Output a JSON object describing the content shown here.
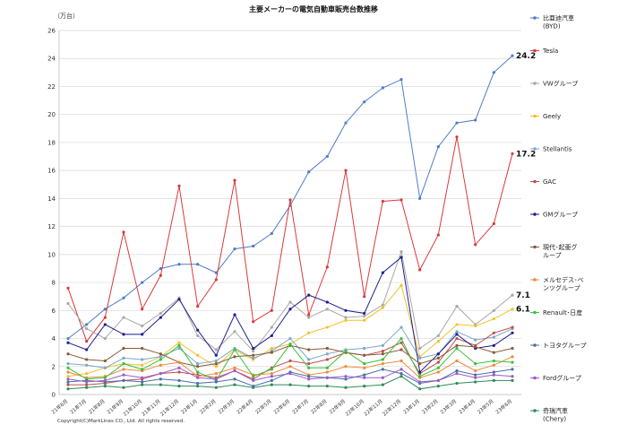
{
  "chart_data": {
    "type": "line",
    "title": "主要メーカーの電気自動車販売台数推移",
    "unit_label": "（万台）",
    "ylim": [
      0,
      26
    ],
    "yticks": [
      0,
      2,
      4,
      6,
      8,
      10,
      12,
      14,
      16,
      18,
      20,
      22,
      24,
      26
    ],
    "grid": true,
    "legend_position": "right",
    "x": [
      "21年6月",
      "21年7月",
      "21年8月",
      "21年9月",
      "21年10月",
      "21年11月",
      "21年12月",
      "22年1月",
      "22年2月",
      "22年3月",
      "22年4月",
      "22年5月",
      "22年6月",
      "22年7月",
      "22年8月",
      "22年9月",
      "22年10月",
      "22年11月",
      "22年12月",
      "23年1月",
      "23年2月",
      "23年3月",
      "23年4月",
      "23年5月",
      "23年6月"
    ],
    "x_tick_labels": [
      "21年6月",
      "21年7月",
      "21年8月",
      "21年9月",
      "21年10月",
      "21年11月",
      "21年12月",
      "22年1月",
      "22年2月",
      "22年3月",
      "22年4月",
      "22年5月",
      "22年6月",
      "22年7月",
      "22年8月",
      "22年9月",
      "22年10月",
      "22年11月",
      "22年12月",
      "23年1月",
      "23年2月",
      "23年3月",
      "23年4月",
      "23年5月",
      "23年6月"
    ],
    "series": [
      {
        "name": "比亜迪汽車\n(BYD)",
        "color": "#4f7cc9",
        "values": [
          4.0,
          5.0,
          6.1,
          6.9,
          8.0,
          9.0,
          9.3,
          9.3,
          8.7,
          10.4,
          10.6,
          11.5,
          13.5,
          15.9,
          17.0,
          19.4,
          20.9,
          21.9,
          22.5,
          14.0,
          17.7,
          19.4,
          19.6,
          23.0,
          24.2
        ]
      },
      {
        "name": "Tesla",
        "color": "#d93a3a",
        "values": [
          7.6,
          3.8,
          5.5,
          11.6,
          6.1,
          8.5,
          14.9,
          6.3,
          8.2,
          15.3,
          5.2,
          6.0,
          13.9,
          5.7,
          9.1,
          16.0,
          7.0,
          13.8,
          13.9,
          8.9,
          11.4,
          18.4,
          10.7,
          12.2,
          17.2
        ]
      },
      {
        "name": "VWグループ",
        "color": "#a8a8a8",
        "values": [
          6.5,
          4.7,
          4.0,
          5.5,
          4.9,
          5.8,
          6.9,
          4.2,
          3.2,
          4.5,
          3.1,
          4.8,
          6.6,
          5.5,
          6.1,
          5.5,
          5.6,
          6.4,
          10.2,
          3.3,
          4.2,
          6.3,
          5.0,
          6.0,
          7.1
        ]
      },
      {
        "name": "Geely",
        "color": "#f2c12e",
        "values": [
          1.3,
          1.5,
          1.9,
          2.2,
          2.1,
          2.7,
          3.7,
          2.8,
          2.0,
          3.2,
          2.5,
          3.3,
          3.6,
          4.4,
          4.8,
          5.3,
          5.3,
          6.2,
          7.8,
          2.7,
          3.8,
          5.0,
          4.9,
          5.4,
          6.1
        ]
      },
      {
        "name": "Stellantis",
        "color": "#7fa7c9",
        "values": [
          2.2,
          2.1,
          1.9,
          2.6,
          2.5,
          2.7,
          3.3,
          2.2,
          2.4,
          3.3,
          2.6,
          3.1,
          4.0,
          2.5,
          2.9,
          3.2,
          3.3,
          3.5,
          4.8,
          2.6,
          2.9,
          4.5,
          3.9,
          4.1,
          4.7
        ]
      },
      {
        "name": "GAC",
        "color": "#c0504d",
        "values": [
          0.7,
          0.7,
          0.8,
          1.0,
          1.1,
          1.5,
          1.6,
          1.4,
          1.2,
          1.7,
          1.1,
          1.9,
          2.4,
          2.2,
          2.5,
          3.0,
          2.8,
          3.1,
          3.7,
          1.5,
          2.3,
          4.0,
          3.5,
          4.4,
          4.8
        ]
      },
      {
        "name": "GMグループ",
        "color": "#1f1f8f",
        "values": [
          3.7,
          3.2,
          5.0,
          4.3,
          4.3,
          5.5,
          6.8,
          4.6,
          2.8,
          5.7,
          3.3,
          4.2,
          6.1,
          7.1,
          6.6,
          6.0,
          5.8,
          8.7,
          9.8,
          1.6,
          2.9,
          4.3,
          3.3,
          3.5,
          4.4
        ]
      },
      {
        "name": "現代･起亜グ\nループ",
        "color": "#8a5a3b",
        "values": [
          2.9,
          2.5,
          2.4,
          3.3,
          3.3,
          2.9,
          2.3,
          2.0,
          2.2,
          2.7,
          2.8,
          3.0,
          3.5,
          3.2,
          3.3,
          3.0,
          2.8,
          2.9,
          3.2,
          2.2,
          2.6,
          3.5,
          3.4,
          3.0,
          3.3
        ]
      },
      {
        "name": "メルセデス･ベ\nンツグループ",
        "color": "#f08a3c",
        "values": [
          1.6,
          1.2,
          1.3,
          1.8,
          1.7,
          2.1,
          2.3,
          1.3,
          1.5,
          1.9,
          1.4,
          1.5,
          2.0,
          1.4,
          1.6,
          2.0,
          1.9,
          2.2,
          2.4,
          1.2,
          1.6,
          2.4,
          1.7,
          2.1,
          2.7
        ]
      },
      {
        "name": "Renault･日産",
        "color": "#38c238",
        "values": [
          1.9,
          1.1,
          1.2,
          2.2,
          1.8,
          2.5,
          3.5,
          1.6,
          1.0,
          3.2,
          1.3,
          1.8,
          3.6,
          1.9,
          1.9,
          3.1,
          2.2,
          2.5,
          4.0,
          1.3,
          1.9,
          3.3,
          2.2,
          2.4,
          2.3
        ]
      },
      {
        "name": "トヨタグループ",
        "color": "#4a6fa5",
        "values": [
          0.9,
          1.0,
          0.9,
          1.0,
          0.9,
          1.1,
          1.0,
          0.8,
          0.9,
          1.1,
          0.6,
          1.0,
          1.6,
          1.3,
          1.2,
          1.1,
          1.4,
          1.8,
          1.5,
          0.8,
          1.0,
          1.7,
          1.4,
          1.6,
          1.8
        ]
      },
      {
        "name": "Fordグループ",
        "color": "#9b59d0",
        "values": [
          1.1,
          0.9,
          1.0,
          1.4,
          1.2,
          1.5,
          1.9,
          1.2,
          1.1,
          1.7,
          1.0,
          1.3,
          1.5,
          1.1,
          1.2,
          1.3,
          1.2,
          1.2,
          1.8,
          0.9,
          1.0,
          1.5,
          1.2,
          1.4,
          1.3
        ]
      },
      {
        "name": "奇瑞汽車\n(Chery)",
        "color": "#2e8b57",
        "values": [
          0.4,
          0.5,
          0.6,
          0.5,
          0.7,
          0.7,
          0.6,
          0.6,
          0.5,
          0.7,
          0.5,
          0.7,
          0.7,
          0.6,
          0.6,
          0.5,
          0.6,
          0.7,
          1.3,
          0.4,
          0.6,
          0.8,
          0.9,
          1.0,
          1.0
        ]
      }
    ],
    "end_labels": [
      {
        "series": "比亜迪汽車\n(BYD)",
        "text": "24.2"
      },
      {
        "series": "Tesla",
        "text": "17.2"
      },
      {
        "series": "VWグループ",
        "text": "7.1"
      },
      {
        "series": "Geely",
        "text": "6.1"
      }
    ],
    "footnote": "Copyright(C)MarkLines CO., Ltd. All rights reserved."
  }
}
